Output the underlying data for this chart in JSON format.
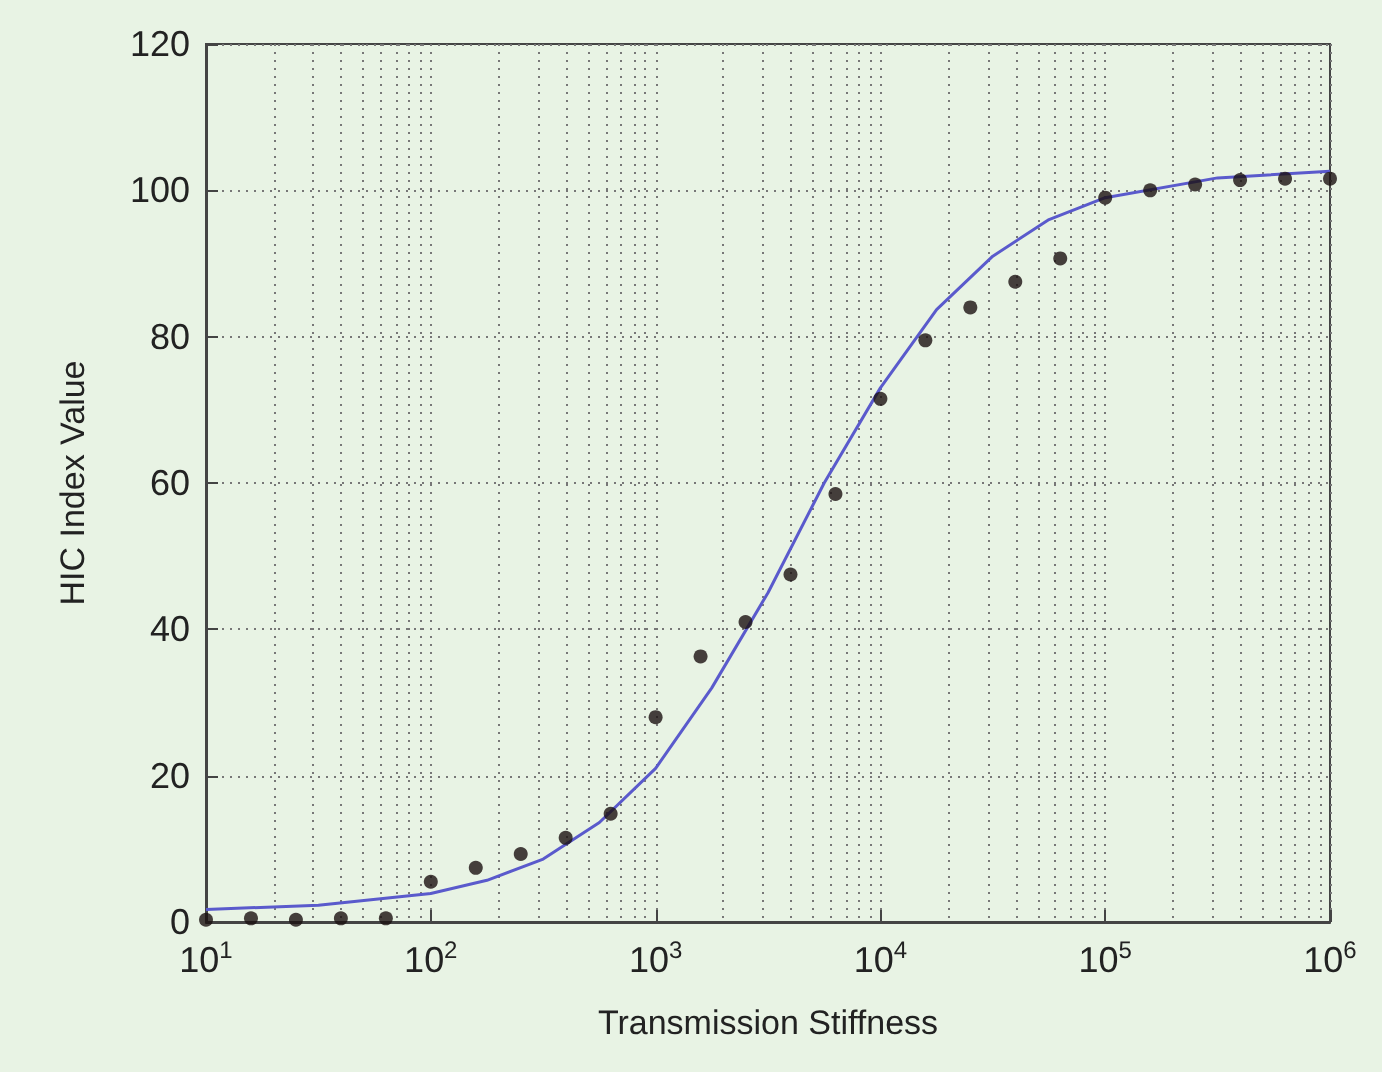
{
  "chart_data": {
    "type": "scatter",
    "xlabel": "Transmission Stiffness",
    "ylabel": "HIC Index Value",
    "log": "x",
    "grid": true,
    "line_style": "solid",
    "xlim": [
      10,
      1000000
    ],
    "xticks": [
      {
        "value": 10,
        "label": "10$^{1}$"
      },
      {
        "value": 100,
        "label": "10$^{2}$"
      },
      {
        "value": 1000,
        "label": "10$^{3}$"
      },
      {
        "value": 10000,
        "label": "10$^{4}$"
      },
      {
        "value": 100000,
        "label": "10$^{5}$"
      },
      {
        "value": 1000000,
        "label": "10$^{6}$"
      }
    ],
    "ylim": [
      0,
      120
    ],
    "yticks": [
      0,
      20,
      40,
      60,
      80,
      100,
      120
    ],
    "series": [
      {
        "type": "scatter",
        "marker": "circle",
        "color": "#1a1010",
        "x": [
          10,
          15.85,
          25.12,
          39.81,
          63.1,
          100,
          158.5,
          251.2,
          398.1,
          631,
          1000,
          1585,
          2512,
          3981,
          6310,
          10000,
          15850,
          25120,
          39810,
          63100,
          100000,
          158500,
          251200,
          398100,
          631000,
          1000000
        ],
        "values": [
          0.3,
          0.5,
          0.3,
          0.5,
          0.5,
          5.5,
          7.4,
          9.3,
          11.5,
          14.8,
          28,
          36.3,
          41,
          47.5,
          58.5,
          71.5,
          79.5,
          84,
          87.5,
          90.7,
          99,
          100,
          100.8,
          101.4,
          101.6,
          101.6
        ]
      },
      {
        "type": "line",
        "marker": "none",
        "color": "#5a5acc",
        "x": [
          10,
          31.62,
          100,
          177.8,
          316.2,
          562.3,
          1000,
          1778,
          3162,
          5623,
          10000,
          17780,
          31620,
          56230,
          100000,
          316200,
          1000000
        ],
        "values": [
          1.7,
          2.3,
          3.9,
          5.7,
          8.6,
          13.6,
          21,
          32,
          45,
          60,
          73,
          83.7,
          91,
          96,
          99,
          101.7,
          102.6
        ]
      }
    ]
  }
}
